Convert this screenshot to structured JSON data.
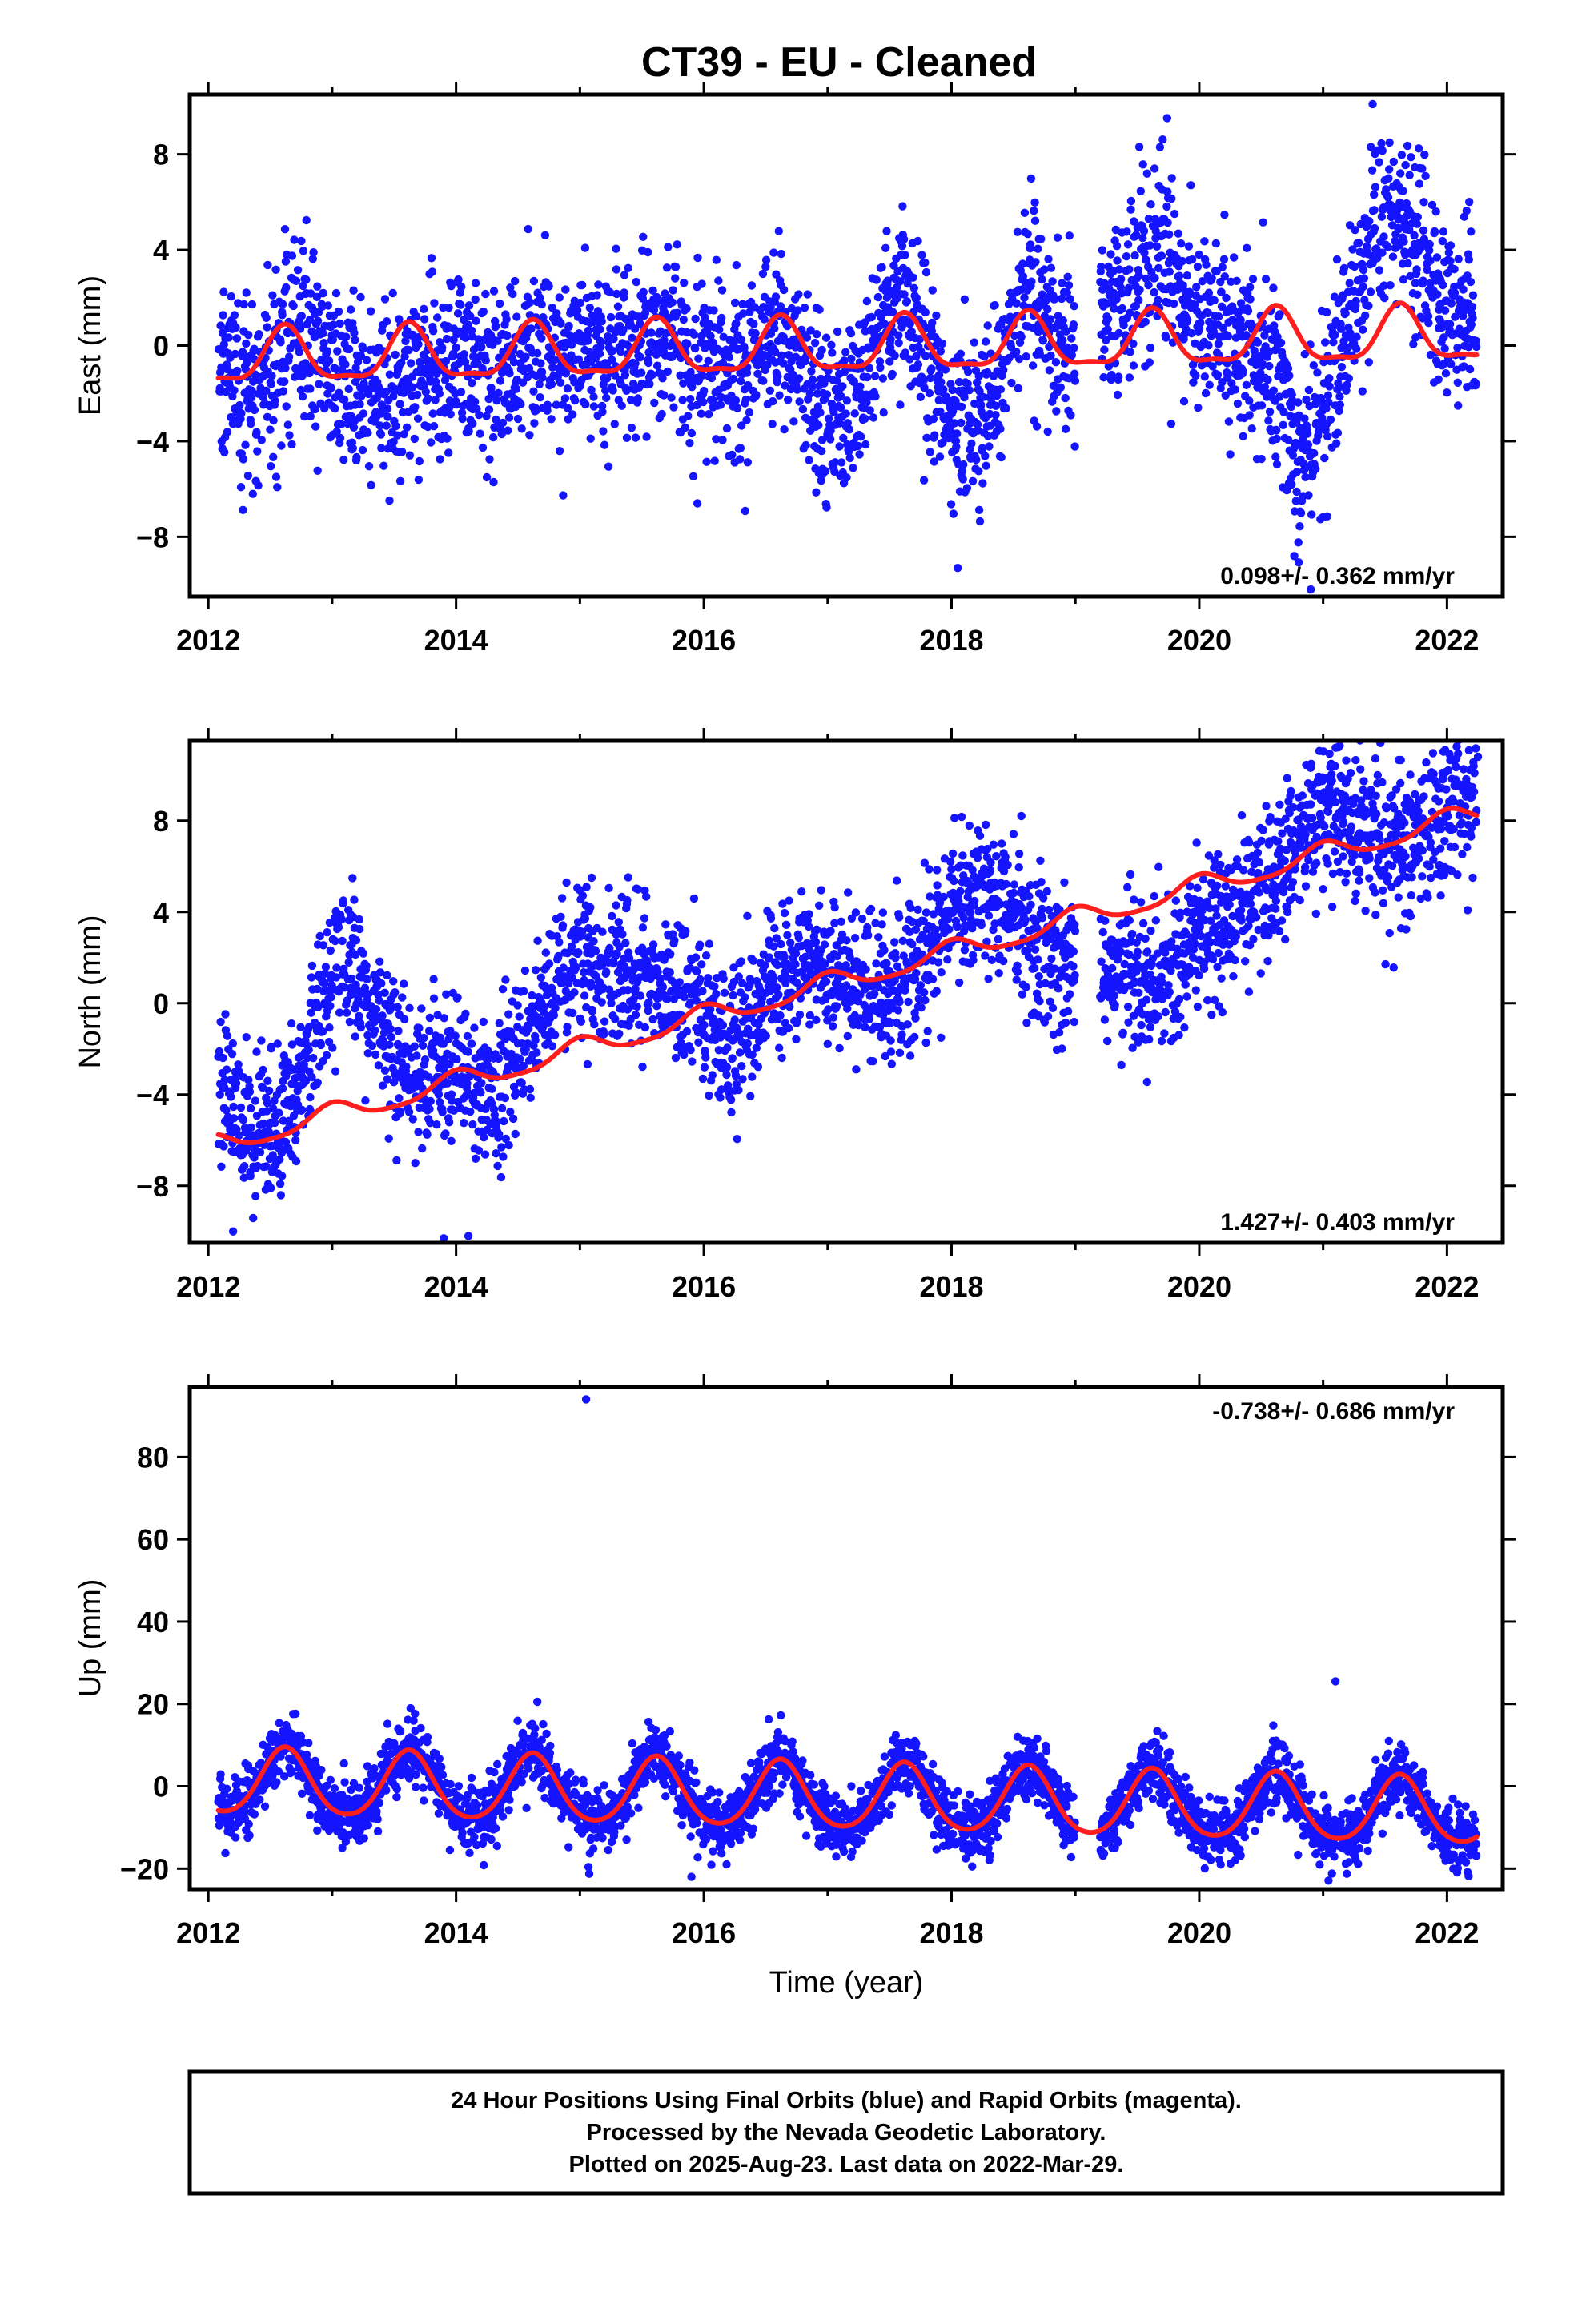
{
  "title": "CT39  - EU - Cleaned",
  "footer": {
    "line1": "24 Hour Positions Using Final Orbits (blue) and Rapid Orbits (magenta).",
    "line2": "Processed by the Nevada Geodetic Laboratory.",
    "line3": "Plotted on 2025-Aug-23. Last data on 2022-Mar-29."
  },
  "colors": {
    "final_orbits": "#1414ff",
    "fit": "#ff1e1e"
  },
  "chart_data": [
    {
      "type": "scatter",
      "ylabel": "East (mm)",
      "xlabel": "",
      "xlim": [
        2011.85,
        2022.45
      ],
      "ylim": [
        -10.5,
        10.5
      ],
      "xticks": [
        2012,
        2014,
        2016,
        2018,
        2020,
        2022
      ],
      "yticks": [
        -8,
        -4,
        0,
        4,
        8
      ],
      "yticklabels": [
        "−8",
        "−4",
        "0",
        "4",
        "8"
      ],
      "rate_label": "0.098+/- 0.362 mm/yr",
      "rate_position": "bottom-right",
      "time_range": [
        2012.08,
        2022.24
      ],
      "trend": {
        "intercept": -0.6,
        "rate": 0.098,
        "annual_amplitude": 1.1,
        "annual_peak": 2012.62,
        "semiannual_amplitude": 0.35
      },
      "scatter": {
        "noise_sd": 1.8,
        "seasonal_offsets": [
          {
            "x": 2012.1,
            "y": 0.4
          },
          {
            "x": 2012.5,
            "y": -1.8
          },
          {
            "x": 2012.9,
            "y": 1.0
          },
          {
            "x": 2013.6,
            "y": -2.5
          },
          {
            "x": 2014.0,
            "y": 1.0
          },
          {
            "x": 2014.6,
            "y": -1.5
          },
          {
            "x": 2015.0,
            "y": 1.4
          },
          {
            "x": 2015.5,
            "y": -0.6
          },
          {
            "x": 2016.3,
            "y": 0.0
          },
          {
            "x": 2017.0,
            "y": -2.0
          },
          {
            "x": 2017.6,
            "y": 1.0
          },
          {
            "x": 2018.1,
            "y": -3.0
          },
          {
            "x": 2018.5,
            "y": 0.0
          },
          {
            "x": 2019.8,
            "y": 2.8
          },
          {
            "x": 2020.3,
            "y": 0.5
          },
          {
            "x": 2020.8,
            "y": -5.5
          },
          {
            "x": 2021.4,
            "y": 4.5
          },
          {
            "x": 2022.2,
            "y": 1.0
          }
        ]
      },
      "gaps": [
        [
          2019.0,
          2019.2
        ]
      ],
      "outliers": [
        {
          "x": 2018.05,
          "y": -9.3
        },
        {
          "x": 2020.9,
          "y": -10.2
        },
        {
          "x": 2021.4,
          "y": 10.1
        }
      ]
    },
    {
      "type": "scatter",
      "ylabel": "North (mm)",
      "xlabel": "",
      "xlim": [
        2011.85,
        2022.45
      ],
      "ylim": [
        -10.5,
        11.5
      ],
      "xticks": [
        2012,
        2014,
        2016,
        2018,
        2020,
        2022
      ],
      "yticks": [
        -8,
        -4,
        0,
        4,
        8
      ],
      "yticklabels": [
        "−8",
        "−4",
        "0",
        "4",
        "8"
      ],
      "rate_label": "1.427+/- 0.403 mm/yr",
      "rate_position": "bottom-right",
      "time_range": [
        2012.08,
        2022.24
      ],
      "trend": {
        "intercept": -6.2,
        "rate": 1.427,
        "annual_amplitude": 0.45,
        "annual_peak": 2013.0,
        "semiannual_amplitude": 0.1
      },
      "scatter": {
        "noise_sd": 1.6,
        "seasonal_offsets": [
          {
            "x": 2012.1,
            "y": 1.8
          },
          {
            "x": 2012.6,
            "y": 0.0
          },
          {
            "x": 2013.1,
            "y": 6.8
          },
          {
            "x": 2013.6,
            "y": 1.5
          },
          {
            "x": 2014.3,
            "y": -1.0
          },
          {
            "x": 2014.8,
            "y": 3.5
          },
          {
            "x": 2015.5,
            "y": 3.0
          },
          {
            "x": 2016.2,
            "y": -1.5
          },
          {
            "x": 2016.6,
            "y": 1.5
          },
          {
            "x": 2017.5,
            "y": -0.8
          },
          {
            "x": 2018.4,
            "y": 2.5
          },
          {
            "x": 2018.8,
            "y": -1.5
          },
          {
            "x": 2019.8,
            "y": -3.5
          },
          {
            "x": 2020.4,
            "y": -1.0
          },
          {
            "x": 2021.0,
            "y": 1.5
          },
          {
            "x": 2021.8,
            "y": -0.5
          },
          {
            "x": 2022.2,
            "y": 1.0
          }
        ]
      },
      "gaps": [
        [
          2019.0,
          2019.2
        ]
      ],
      "outliers": [
        {
          "x": 2012.2,
          "y": -10.0
        },
        {
          "x": 2013.9,
          "y": -10.3
        },
        {
          "x": 2014.1,
          "y": -10.2
        },
        {
          "x": 2022.25,
          "y": 10.8
        }
      ]
    },
    {
      "type": "scatter",
      "ylabel": "Up (mm)",
      "xlabel": "Time (year)",
      "xlim": [
        2011.85,
        2022.45
      ],
      "ylim": [
        -25,
        97
      ],
      "xticks": [
        2012,
        2014,
        2016,
        2018,
        2020,
        2022
      ],
      "yticks": [
        -20,
        0,
        20,
        40,
        60,
        80
      ],
      "yticklabels": [
        "−20",
        "0",
        "20",
        "40",
        "60",
        "80"
      ],
      "rate_label": "-0.738+/- 0.686 mm/yr",
      "rate_position": "top-right",
      "time_range": [
        2012.08,
        2022.24
      ],
      "trend": {
        "intercept": 1.0,
        "rate": -0.738,
        "annual_amplitude": 8.0,
        "annual_peak": 2012.62,
        "semiannual_amplitude": 1.0
      },
      "scatter": {
        "noise_sd": 3.8,
        "seasonal_offsets": []
      },
      "gaps": [
        [
          2019.0,
          2019.2
        ]
      ],
      "outliers": [
        {
          "x": 2015.05,
          "y": 94
        },
        {
          "x": 2021.1,
          "y": 25.5
        },
        {
          "x": 2015.9,
          "y": -22
        }
      ]
    }
  ]
}
